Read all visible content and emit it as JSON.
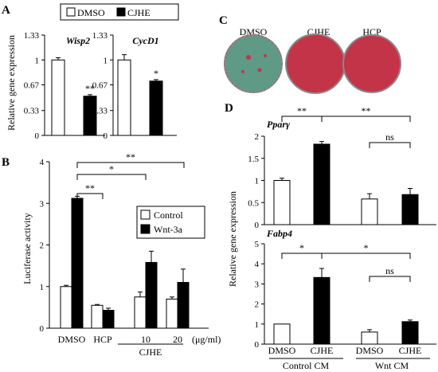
{
  "panels": {
    "A": {
      "letter": "A"
    },
    "B": {
      "letter": "B"
    },
    "C": {
      "letter": "C"
    },
    "D": {
      "letter": "D"
    }
  },
  "legend_A": {
    "items": [
      "DMSO",
      "CJHE"
    ]
  },
  "legend_B": {
    "items": [
      "Control",
      "Wnt-3a"
    ]
  },
  "plates": {
    "labels": [
      "DMSO",
      "CJHE",
      "HCP"
    ],
    "colors": {
      "DMSO": "#5f9a86",
      "CJHE": "#c43448",
      "HCP": "#c43448"
    }
  },
  "colors": {
    "open_bar": "#ffffff",
    "filled_bar": "#000000"
  },
  "chart_data": [
    {
      "id": "A-wisp2",
      "type": "bar",
      "title": "Wisp2",
      "ylabel": "Relative gene expression",
      "ylim": [
        0,
        1.33
      ],
      "yticks": [
        "0",
        "0.33",
        "0.67",
        "1",
        "1.33"
      ],
      "categories": [
        "DMSO",
        "CJHE"
      ],
      "values": [
        1.0,
        0.52
      ],
      "errors": [
        0.03,
        0.02
      ],
      "fill": [
        "open",
        "filled"
      ],
      "significance": [
        "",
        "**"
      ]
    },
    {
      "id": "A-cycd1",
      "type": "bar",
      "title": "CycD1",
      "ylabel": "",
      "ylim": [
        0,
        1.33
      ],
      "yticks": [
        "0",
        "0.33",
        "0.67",
        "1",
        "1.33"
      ],
      "categories": [
        "DMSO",
        "CJHE"
      ],
      "values": [
        1.0,
        0.72
      ],
      "errors": [
        0.07,
        0.02
      ],
      "fill": [
        "open",
        "filled"
      ],
      "significance": [
        "",
        "*"
      ]
    },
    {
      "id": "B",
      "type": "bar",
      "ylabel": "Luciferase activity",
      "ylim": [
        0,
        4
      ],
      "yticks": [
        "0",
        "1",
        "2",
        "3",
        "4"
      ],
      "categories": [
        "DMSO",
        "HCP",
        "10",
        "20"
      ],
      "group_label": "CJHE",
      "unit_label": "(μg/ml)",
      "series": [
        {
          "name": "Control",
          "values": [
            1.0,
            0.55,
            0.75,
            0.7
          ],
          "errors": [
            0.03,
            0.02,
            0.12,
            0.05
          ]
        },
        {
          "name": "Wnt-3a",
          "values": [
            3.12,
            0.43,
            1.58,
            1.1
          ],
          "errors": [
            0.05,
            0.05,
            0.27,
            0.32
          ]
        }
      ],
      "significance": [
        {
          "from": "DMSO",
          "to": "HCP",
          "label": "**"
        },
        {
          "from": "DMSO",
          "to": "10",
          "label": "*"
        },
        {
          "from": "DMSO",
          "to": "20",
          "label": "**"
        }
      ]
    },
    {
      "id": "D-ppary",
      "type": "bar",
      "title": "Pparγ",
      "ylim": [
        0,
        2
      ],
      "yticks": [
        "0",
        "0.5",
        "1",
        "1.5",
        "2"
      ],
      "categories": [
        "DMSO",
        "CJHE",
        "DMSO",
        "CJHE"
      ],
      "values": [
        1.0,
        1.82,
        0.58,
        0.68
      ],
      "errors": [
        0.05,
        0.06,
        0.12,
        0.14
      ],
      "fill": [
        "open",
        "filled",
        "open",
        "filled"
      ],
      "significance": [
        {
          "from": 0,
          "to": 1,
          "label": "**"
        },
        {
          "from": 1,
          "to": 3,
          "label": "**"
        },
        {
          "from": 2,
          "to": 3,
          "label": "ns"
        }
      ]
    },
    {
      "id": "D-fabp4",
      "type": "bar",
      "title": "Fabp4",
      "ylim": [
        0,
        5
      ],
      "yticks": [
        "0",
        "1",
        "2",
        "3",
        "4",
        "5"
      ],
      "categories": [
        "DMSO",
        "CJHE",
        "DMSO",
        "CJHE"
      ],
      "values": [
        1.0,
        3.32,
        0.6,
        1.12
      ],
      "errors": [
        0.0,
        0.45,
        0.12,
        0.08
      ],
      "fill": [
        "open",
        "filled",
        "open",
        "filled"
      ],
      "significance": [
        {
          "from": 0,
          "to": 1,
          "label": "*"
        },
        {
          "from": 1,
          "to": 3,
          "label": "*"
        },
        {
          "from": 2,
          "to": 3,
          "label": "ns"
        }
      ]
    }
  ],
  "D_shared": {
    "ylabel": "Relative gene expression",
    "group_labels": [
      "Control CM",
      "Wnt CM"
    ]
  }
}
